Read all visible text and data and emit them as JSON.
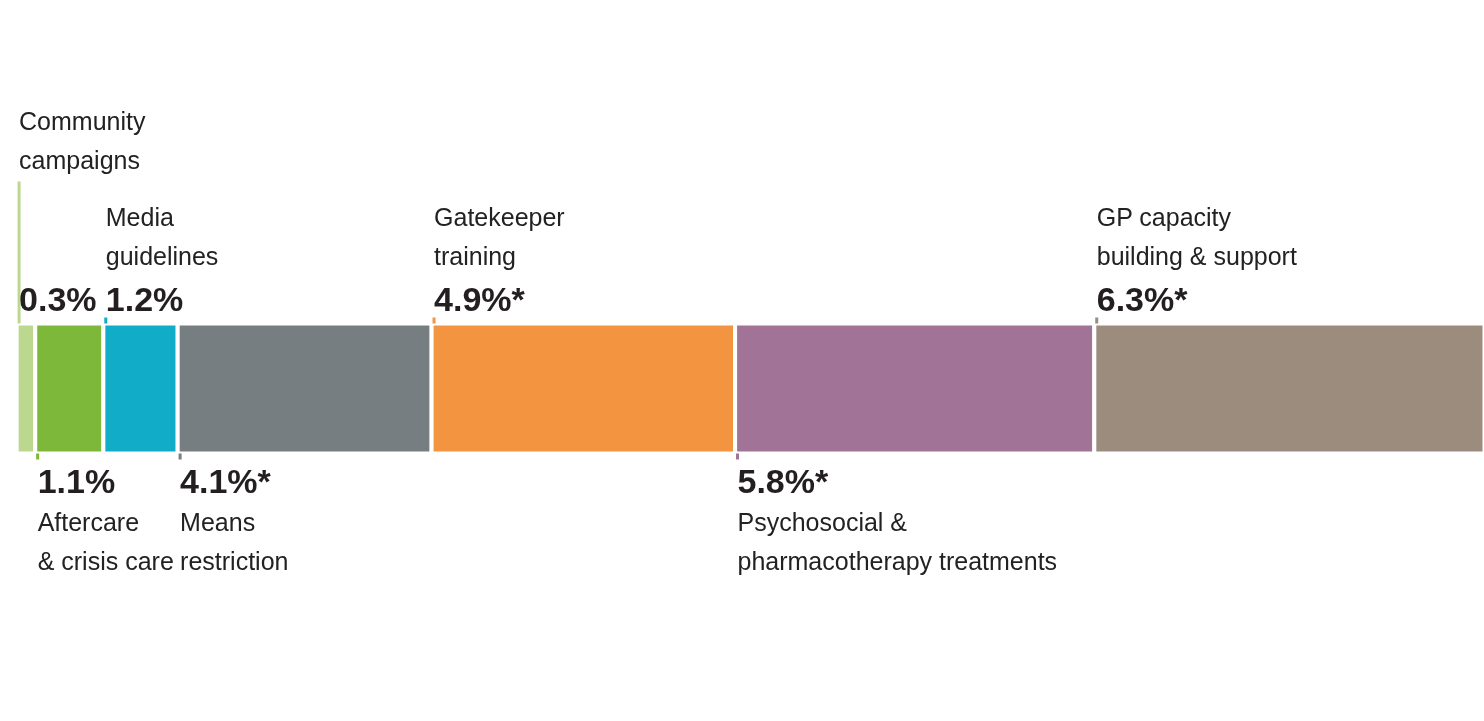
{
  "chart_data": {
    "type": "bar",
    "stacked": true,
    "orientation": "horizontal",
    "categories": [
      null
    ],
    "series": [
      {
        "name": "Community campaigns",
        "color": "#bcd88f",
        "values": [
          0.3
        ],
        "value_labels": [
          "0.3%"
        ]
      },
      {
        "name": "Aftercare & crisis care",
        "color": "#7db83a",
        "values": [
          1.1
        ],
        "value_labels": [
          "1.1%"
        ]
      },
      {
        "name": "Media guidelines",
        "color": "#11acc8",
        "values": [
          1.2
        ],
        "value_labels": [
          "1.2%"
        ]
      },
      {
        "name": "Means restriction",
        "color": "#777e81",
        "values": [
          4.1
        ],
        "value_labels": [
          "4.1%*"
        ]
      },
      {
        "name": "Gatekeeper training",
        "color": "#f29440",
        "values": [
          4.9
        ],
        "value_labels": [
          "4.9%*"
        ]
      },
      {
        "name": "Psychosocial & pharmacotherapy treatments",
        "color": "#a07397",
        "values": [
          5.8
        ],
        "value_labels": [
          "5.8%*"
        ]
      },
      {
        "name": "GP capacity building & support",
        "color": "#9c8c7e",
        "values": [
          6.3
        ],
        "value_labels": [
          "6.3%*"
        ]
      }
    ]
  }
}
